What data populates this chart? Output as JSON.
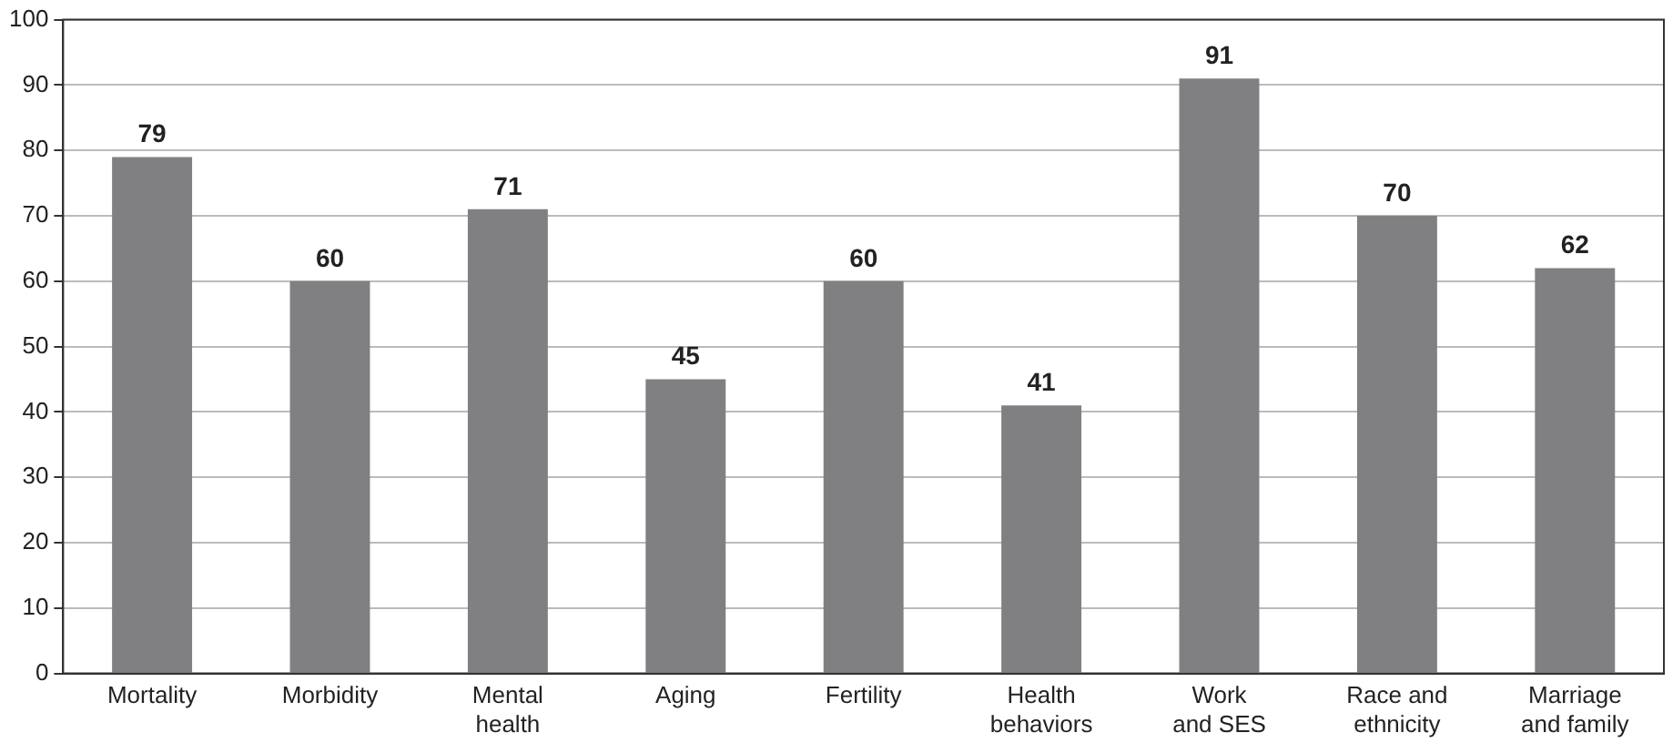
{
  "chart_data": {
    "type": "bar",
    "categories": [
      "Mortality",
      "Morbidity",
      "Mental\nhealth",
      "Aging",
      "Fertility",
      "Health\nbehaviors",
      "Work\nand SES",
      "Race and\nethnicity",
      "Marriage\nand family"
    ],
    "values": [
      79,
      60,
      71,
      45,
      60,
      41,
      91,
      70,
      62
    ],
    "color": "#808083",
    "ylim": [
      0,
      100
    ],
    "yticks": [
      0,
      10,
      20,
      30,
      40,
      50,
      60,
      70,
      80,
      90,
      100
    ],
    "grid": "y",
    "legend": false,
    "data_labels": true
  }
}
